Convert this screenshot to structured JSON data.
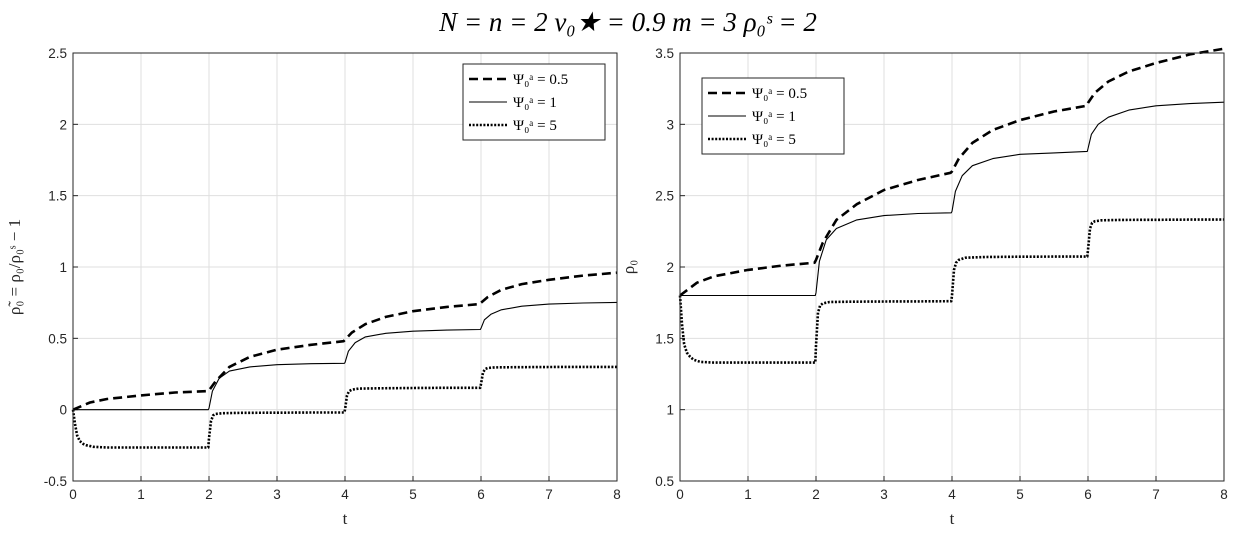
{
  "figure_title": "N = n = 2   ν₀★ = 0.9   m = 3   ρ₀ˢ = 2",
  "chart_data": [
    {
      "type": "line",
      "xlabel": "t",
      "ylabel": "ρ̃₀ = ρ₀/ρ₀ˢ − 1",
      "xlim": [
        0,
        8
      ],
      "ylim": [
        -0.5,
        2.5
      ],
      "xticks": [
        "0",
        "1",
        "2",
        "3",
        "4",
        "5",
        "6",
        "7",
        "8"
      ],
      "yticks": [
        "-0.5",
        "0",
        "0.5",
        "1",
        "1.5",
        "2",
        "2.5"
      ],
      "grid": true,
      "legend_position": "top-right",
      "series": [
        {
          "name": "Ψ₀ᵃ = 0.5",
          "style": "dashed",
          "x": [
            0,
            0.25,
            0.5,
            1,
            1.5,
            1.98,
            2.0,
            2.1,
            2.3,
            2.6,
            3,
            3.5,
            3.98,
            4.0,
            4.1,
            4.3,
            4.6,
            5,
            5.5,
            5.98,
            6.0,
            6.1,
            6.3,
            6.6,
            7,
            7.5,
            8
          ],
          "y": [
            0.0,
            0.05,
            0.075,
            0.1,
            0.12,
            0.13,
            0.135,
            0.2,
            0.3,
            0.37,
            0.42,
            0.455,
            0.48,
            0.49,
            0.54,
            0.6,
            0.65,
            0.69,
            0.72,
            0.74,
            0.75,
            0.79,
            0.84,
            0.88,
            0.91,
            0.94,
            0.96
          ]
        },
        {
          "name": "Ψ₀ᵃ = 1",
          "style": "solid",
          "x": [
            0,
            1,
            1.99,
            2.0,
            2.05,
            2.15,
            2.3,
            2.6,
            3,
            3.5,
            3.99,
            4.0,
            4.05,
            4.15,
            4.3,
            4.6,
            5,
            5.5,
            5.99,
            6.0,
            6.05,
            6.15,
            6.3,
            6.6,
            7,
            7.5,
            8
          ],
          "y": [
            0,
            0,
            0,
            0.01,
            0.13,
            0.22,
            0.27,
            0.3,
            0.315,
            0.322,
            0.325,
            0.33,
            0.41,
            0.47,
            0.51,
            0.535,
            0.55,
            0.558,
            0.562,
            0.57,
            0.63,
            0.67,
            0.7,
            0.725,
            0.74,
            0.748,
            0.752
          ]
        },
        {
          "name": "Ψ₀ᵃ = 5",
          "style": "dotted",
          "x": [
            0,
            0.03,
            0.06,
            0.1,
            0.15,
            0.2,
            0.3,
            0.5,
            1,
            1.5,
            1.99,
            2.0,
            2.03,
            2.06,
            2.1,
            2.2,
            2.5,
            3,
            3.5,
            3.99,
            4.0,
            4.03,
            4.06,
            4.1,
            4.2,
            4.5,
            5,
            5.5,
            5.99,
            6.0,
            6.03,
            6.06,
            6.1,
            6.2,
            6.5,
            7,
            7.5,
            8
          ],
          "y": [
            0,
            -0.1,
            -0.18,
            -0.22,
            -0.24,
            -0.25,
            -0.26,
            -0.265,
            -0.265,
            -0.265,
            -0.265,
            -0.2,
            -0.08,
            -0.04,
            -0.03,
            -0.025,
            -0.022,
            -0.021,
            -0.02,
            -0.02,
            0.0,
            0.1,
            0.13,
            0.14,
            0.148,
            0.15,
            0.152,
            0.153,
            0.153,
            0.18,
            0.26,
            0.285,
            0.292,
            0.296,
            0.298,
            0.299,
            0.3,
            0.3
          ]
        }
      ]
    },
    {
      "type": "line",
      "xlabel": "t",
      "ylabel": "ρ₀",
      "xlim": [
        0,
        8
      ],
      "ylim": [
        0.5,
        3.5
      ],
      "xticks": [
        "0",
        "1",
        "2",
        "3",
        "4",
        "5",
        "6",
        "7",
        "8"
      ],
      "yticks": [
        "0.5",
        "1",
        "1.5",
        "2",
        "2.5",
        "3",
        "3.5"
      ],
      "grid": true,
      "legend_position": "top-left",
      "series": [
        {
          "name": "Ψ₀ᵃ = 0.5",
          "style": "dashed",
          "x": [
            0,
            0.25,
            0.5,
            1,
            1.5,
            1.98,
            2.0,
            2.1,
            2.3,
            2.6,
            3,
            3.5,
            3.98,
            4.0,
            4.1,
            4.3,
            4.6,
            5,
            5.5,
            5.98,
            6.0,
            6.1,
            6.3,
            6.6,
            7,
            7.5,
            8
          ],
          "y": [
            1.8,
            1.89,
            1.935,
            1.98,
            2.01,
            2.03,
            2.05,
            2.17,
            2.33,
            2.44,
            2.54,
            2.61,
            2.66,
            2.67,
            2.76,
            2.87,
            2.96,
            3.03,
            3.09,
            3.13,
            3.15,
            3.22,
            3.3,
            3.37,
            3.43,
            3.49,
            3.53
          ]
        },
        {
          "name": "Ψ₀ᵃ = 1",
          "style": "solid",
          "x": [
            0,
            1,
            1.99,
            2.0,
            2.05,
            2.15,
            2.3,
            2.6,
            3,
            3.5,
            3.99,
            4.0,
            4.05,
            4.15,
            4.3,
            4.6,
            5,
            5.5,
            5.99,
            6.0,
            6.05,
            6.15,
            6.3,
            6.6,
            7,
            7.5,
            8
          ],
          "y": [
            1.8,
            1.8,
            1.8,
            1.82,
            2.04,
            2.19,
            2.27,
            2.33,
            2.36,
            2.375,
            2.38,
            2.39,
            2.53,
            2.64,
            2.71,
            2.76,
            2.79,
            2.8,
            2.81,
            2.83,
            2.93,
            3.0,
            3.05,
            3.1,
            3.13,
            3.145,
            3.155
          ]
        },
        {
          "name": "Ψ₀ᵃ = 5",
          "style": "dotted",
          "x": [
            0,
            0.03,
            0.06,
            0.1,
            0.15,
            0.2,
            0.3,
            0.5,
            1,
            1.5,
            1.99,
            2.0,
            2.03,
            2.06,
            2.1,
            2.2,
            2.5,
            3,
            3.5,
            3.99,
            4.0,
            4.03,
            4.06,
            4.1,
            4.2,
            4.5,
            5,
            5.5,
            5.99,
            6.0,
            6.03,
            6.06,
            6.1,
            6.2,
            6.5,
            7,
            7.5,
            8
          ],
          "y": [
            1.8,
            1.6,
            1.46,
            1.4,
            1.37,
            1.35,
            1.335,
            1.33,
            1.33,
            1.33,
            1.33,
            1.45,
            1.68,
            1.73,
            1.745,
            1.755,
            1.757,
            1.758,
            1.759,
            1.76,
            1.8,
            1.98,
            2.03,
            2.05,
            2.065,
            2.07,
            2.072,
            2.073,
            2.073,
            2.12,
            2.27,
            2.31,
            2.32,
            2.327,
            2.33,
            2.331,
            2.332,
            2.333
          ]
        }
      ]
    }
  ]
}
